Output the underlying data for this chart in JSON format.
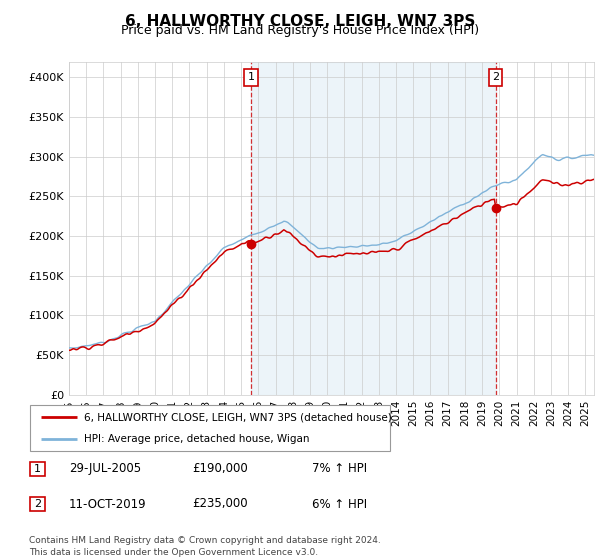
{
  "title": "6, HALLWORTHY CLOSE, LEIGH, WN7 3PS",
  "subtitle": "Price paid vs. HM Land Registry's House Price Index (HPI)",
  "title_fontsize": 11,
  "subtitle_fontsize": 9,
  "ylabel_ticks": [
    "£0",
    "£50K",
    "£100K",
    "£150K",
    "£200K",
    "£250K",
    "£300K",
    "£350K",
    "£400K"
  ],
  "ytick_values": [
    0,
    50000,
    100000,
    150000,
    200000,
    250000,
    300000,
    350000,
    400000
  ],
  "ylim": [
    0,
    420000
  ],
  "xlim_start": 1995.0,
  "xlim_end": 2025.5,
  "hpi_color": "#7fb3d9",
  "hpi_fill_color": "#daeaf5",
  "price_color": "#cc0000",
  "sale1_price": 190000,
  "sale1_x": 2005.57,
  "sale2_price": 235000,
  "sale2_x": 2019.78,
  "legend_line1": "6, HALLWORTHY CLOSE, LEIGH, WN7 3PS (detached house)",
  "legend_line2": "HPI: Average price, detached house, Wigan",
  "footer": "Contains HM Land Registry data © Crown copyright and database right 2024.\nThis data is licensed under the Open Government Licence v3.0.",
  "table_rows": [
    {
      "label": "1",
      "date": "29-JUL-2005",
      "price": "£190,000",
      "hpi": "7% ↑ HPI"
    },
    {
      "label": "2",
      "date": "11-OCT-2019",
      "price": "£235,000",
      "hpi": "6% ↑ HPI"
    }
  ]
}
